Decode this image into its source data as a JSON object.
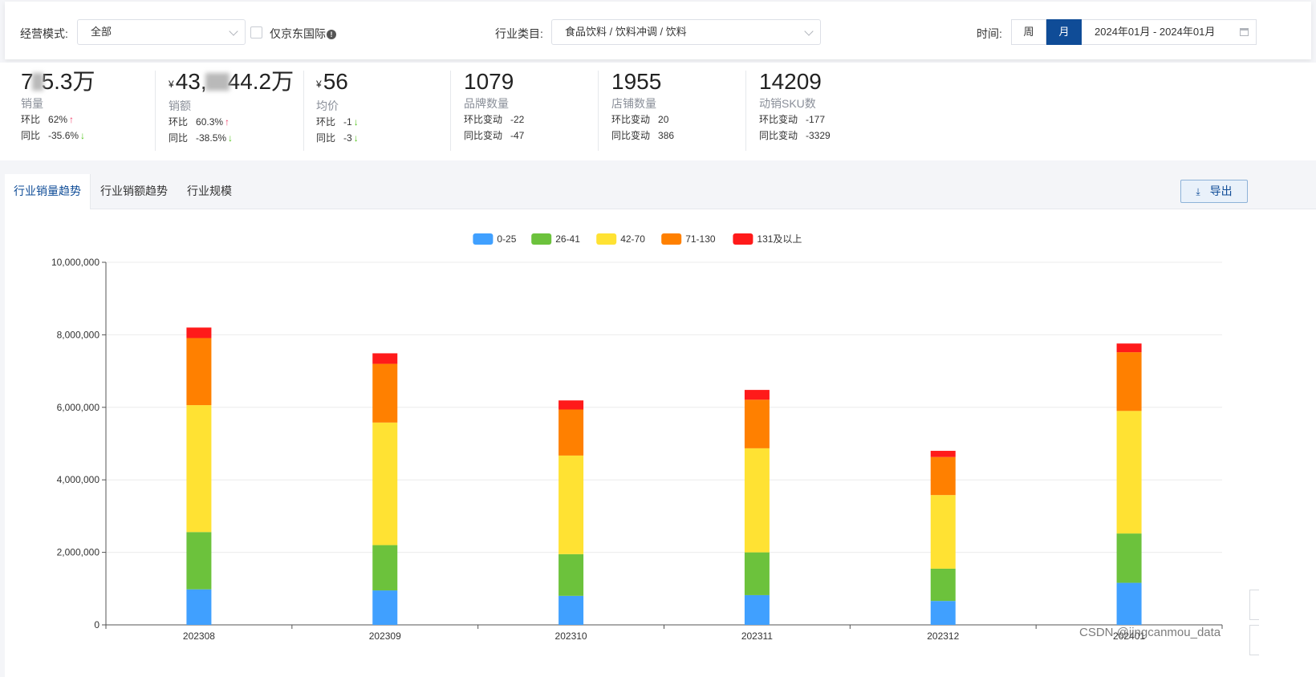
{
  "filters": {
    "mode_label": "经营模式:",
    "mode_value": "全部",
    "jd_intl_label": "仅京东国际",
    "info_glyph": "!",
    "category_label": "行业类目:",
    "category_value": "食品饮料 / 饮料冲调 / 饮料",
    "time_label": "时间:",
    "week_label": "周",
    "month_label": "月",
    "date_range": "2024年01月 - 2024年01月"
  },
  "metrics": [
    {
      "value_pre": "7",
      "value_post": "5.3万",
      "currency": "",
      "name": "销量",
      "r1_label": "环比",
      "r1_value": "62%",
      "r1_arrow": "↑",
      "r2_label": "同比",
      "r2_value": "-35.6%",
      "r2_arrow": "↓"
    },
    {
      "value_pre": "43,",
      "value_post": "44.2万",
      "currency": "¥",
      "name": "销额",
      "r1_label": "环比",
      "r1_value": "60.3%",
      "r1_arrow": "↑",
      "r2_label": "同比",
      "r2_value": "-38.5%",
      "r2_arrow": "↓"
    },
    {
      "value_pre": "56",
      "value_post": "",
      "currency": "¥",
      "name": "均价",
      "r1_label": "环比",
      "r1_value": "-1",
      "r1_arrow": "↓",
      "r2_label": "同比",
      "r2_value": "-3",
      "r2_arrow": "↓"
    },
    {
      "value_pre": "1079",
      "value_post": "",
      "currency": "",
      "name": "品牌数量",
      "r1_label": "环比变动",
      "r1_value": "-22",
      "r1_arrow": "",
      "r2_label": "同比变动",
      "r2_value": "-47",
      "r2_arrow": ""
    },
    {
      "value_pre": "1955",
      "value_post": "",
      "currency": "",
      "name": "店铺数量",
      "r1_label": "环比变动",
      "r1_value": "20",
      "r1_arrow": "",
      "r2_label": "同比变动",
      "r2_value": "386",
      "r2_arrow": ""
    },
    {
      "value_pre": "14209",
      "value_post": "",
      "currency": "",
      "name": "动销SKU数",
      "r1_label": "环比变动",
      "r1_value": "-177",
      "r1_arrow": "",
      "r2_label": "同比变动",
      "r2_value": "-3329",
      "r2_arrow": ""
    }
  ],
  "tabs": [
    "行业销量趋势",
    "行业销额趋势",
    "行业规模"
  ],
  "export_label": "导出",
  "export_icon": "⤓",
  "watermark": "CSDN @jingcanmou_data",
  "colors": {
    "accent": "#0f4c97",
    "up": "#f0416c",
    "down": "#52c41a"
  },
  "chart_data": {
    "type": "bar",
    "stacked": true,
    "categories": [
      "202308",
      "202309",
      "202310",
      "202311",
      "202312",
      "202401"
    ],
    "series": [
      {
        "name": "0-25",
        "color": "#40a0ff",
        "values": [
          980000,
          950000,
          800000,
          820000,
          660000,
          1160000
        ]
      },
      {
        "name": "26-41",
        "color": "#6cc23c",
        "values": [
          1580000,
          1250000,
          1150000,
          1180000,
          890000,
          1360000
        ]
      },
      {
        "name": "42-70",
        "color": "#ffe233",
        "values": [
          3500000,
          3380000,
          2720000,
          2870000,
          2030000,
          3380000
        ]
      },
      {
        "name": "71-130",
        "color": "#ff8000",
        "values": [
          1850000,
          1620000,
          1270000,
          1340000,
          1050000,
          1620000
        ]
      },
      {
        "name": "131及以上",
        "color": "#ff1a1a",
        "values": [
          290000,
          290000,
          250000,
          270000,
          170000,
          240000
        ]
      }
    ],
    "ylim": [
      0,
      10000000
    ],
    "yticks": [
      0,
      2000000,
      4000000,
      6000000,
      8000000,
      10000000
    ],
    "ytick_labels": [
      "0",
      "2,000,000",
      "4,000,000",
      "6,000,000",
      "8,000,000",
      "10,000,000"
    ],
    "legend_position": "top-center",
    "grid": true,
    "title": "",
    "xlabel": "",
    "ylabel": ""
  }
}
